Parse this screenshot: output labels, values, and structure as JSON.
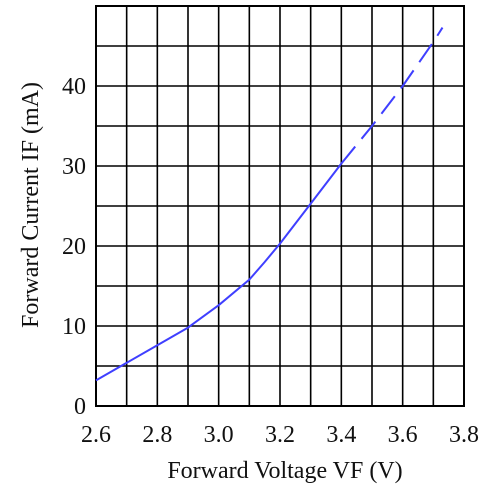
{
  "chart_data": {
    "type": "line",
    "title": "",
    "xlabel": "Forward Voltage  VF (V)",
    "ylabel": "Forward Current IF (mA)",
    "xlim": [
      2.6,
      3.8
    ],
    "ylim": [
      0,
      50
    ],
    "x_ticks": [
      "2.6",
      "2.8",
      "3.0",
      "3.2",
      "3.4",
      "3.6",
      "3.8"
    ],
    "y_ticks": [
      "0",
      "10",
      "20",
      "30",
      "40"
    ],
    "grid": true,
    "series": [
      {
        "color": "#3f3fff",
        "style": "solid",
        "points": [
          [
            2.6,
            3.2
          ],
          [
            2.7,
            5.4
          ],
          [
            2.8,
            7.6
          ],
          [
            2.9,
            9.8
          ],
          [
            3.0,
            12.6
          ],
          [
            3.1,
            15.8
          ],
          [
            3.15,
            18.0
          ],
          [
            3.2,
            20.3
          ],
          [
            3.3,
            25.3
          ],
          [
            3.4,
            30.3
          ]
        ]
      },
      {
        "color": "#3f3fff",
        "style": "dashed",
        "points": [
          [
            3.4,
            30.3
          ],
          [
            3.5,
            35.0
          ],
          [
            3.6,
            40.0
          ],
          [
            3.7,
            45.5
          ],
          [
            3.73,
            47.3
          ]
        ]
      }
    ]
  }
}
